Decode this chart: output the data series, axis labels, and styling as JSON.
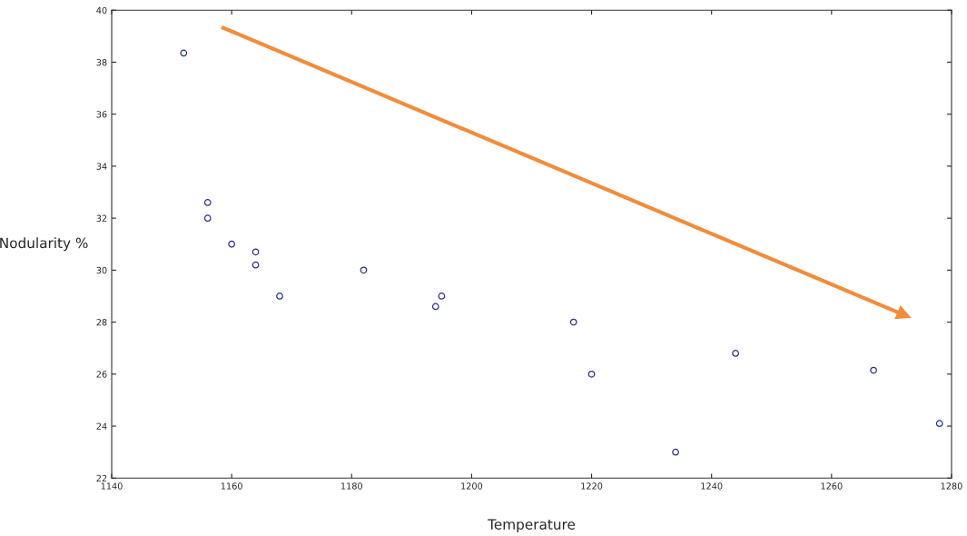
{
  "chart_data": {
    "type": "scatter",
    "xlabel": "Temperature",
    "ylabel": "Nodularity %",
    "x": [
      1152,
      1156,
      1156,
      1160,
      1164,
      1164,
      1168,
      1182,
      1194,
      1195,
      1217,
      1220,
      1234,
      1244,
      1267,
      1278
    ],
    "series": [
      {
        "color": "#2b2ba0",
        "values": [
          38.35,
          32.6,
          32.0,
          31.0,
          30.7,
          30.2,
          29.0,
          30.0,
          28.6,
          29.0,
          28.0,
          26.0,
          23.0,
          26.8,
          26.15,
          24.1
        ]
      }
    ],
    "xlim": [
      1140,
      1280
    ],
    "ylim": [
      22,
      40
    ],
    "xticks": [
      1140,
      1160,
      1180,
      1200,
      1220,
      1240,
      1260,
      1280
    ],
    "yticks": [
      22,
      24,
      26,
      28,
      30,
      32,
      34,
      36,
      38,
      40
    ],
    "grid": false,
    "marker": "circle"
  }
}
